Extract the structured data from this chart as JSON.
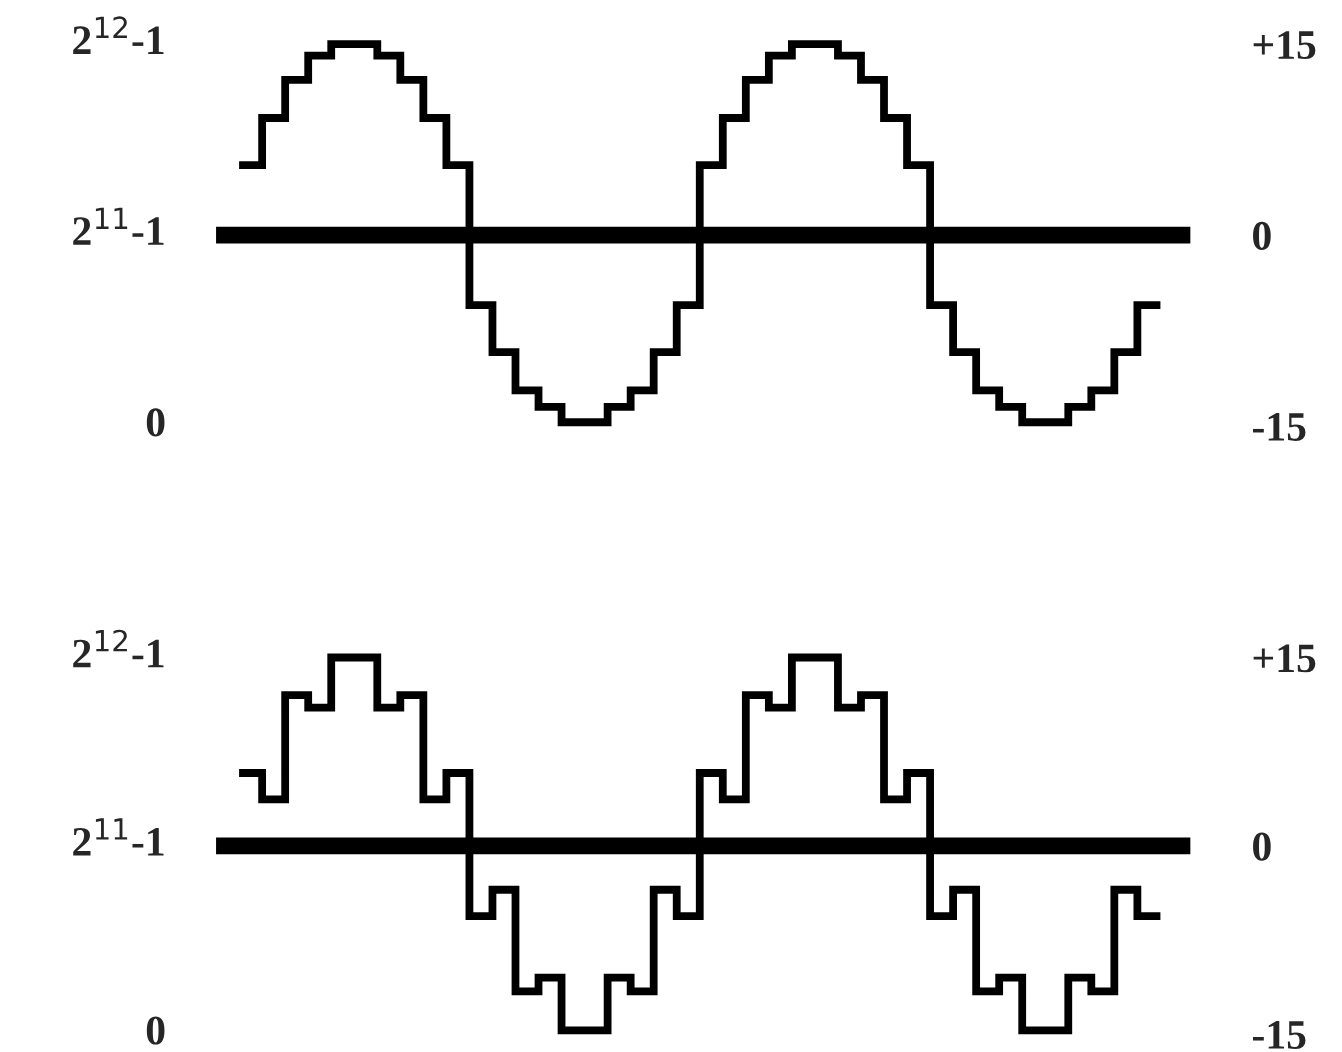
{
  "chart_data": [
    {
      "type": "step",
      "categories": [
        null,
        null,
        null,
        null,
        null,
        null,
        null,
        null,
        null,
        null,
        null,
        null,
        null,
        null,
        null,
        null,
        null,
        null,
        null,
        null,
        null,
        null,
        null,
        null,
        null,
        null,
        null,
        null,
        null,
        null,
        null,
        null,
        null,
        null,
        null,
        null,
        null,
        null,
        null,
        null
      ],
      "series": [
        {
          "color": "#000000",
          "values": [
            5.5,
            9.2,
            12.2,
            14.1,
            15,
            15,
            14.1,
            12.2,
            9.2,
            5.5,
            -5.5,
            -9.2,
            -12.2,
            -13.5,
            -14.7,
            -14.7,
            -13.5,
            -12.2,
            -9.2,
            -5.5,
            5.5,
            9.2,
            12.2,
            14.1,
            15,
            15,
            14.1,
            12.2,
            9.2,
            5.5,
            -5.5,
            -9.2,
            -12.2,
            -13.5,
            -14.7,
            -14.7,
            -13.5,
            -12.2,
            -9.2,
            -5.5
          ]
        }
      ],
      "ylim": [
        -15,
        15
      ],
      "yticks": [
        {
          "value": 15,
          "label": "+15"
        },
        0,
        -15
      ],
      "annotations": [
        "2$^{12}$-1",
        "2$^{11}$-1",
        "0"
      ],
      "ref_lines": [
        {
          "axis": "y",
          "value": 0,
          "color": "#000000"
        }
      ],
      "tick_labels": "y"
    },
    {
      "type": "step",
      "categories": [
        null,
        null,
        null,
        null,
        null,
        null,
        null,
        null,
        null,
        null,
        null,
        null,
        null,
        null,
        null,
        null,
        null,
        null,
        null,
        null,
        null,
        null,
        null,
        null,
        null,
        null,
        null,
        null,
        null,
        null,
        null,
        null,
        null,
        null,
        null,
        null,
        null,
        null,
        null,
        null
      ],
      "series": [
        {
          "color": "#000000",
          "values": [
            5.8,
            3.7,
            12,
            11,
            15,
            15,
            11,
            12,
            3.7,
            5.8,
            -5.6,
            -3.5,
            -11.6,
            -10.5,
            -14.7,
            -14.7,
            -10.5,
            -11.6,
            -3.5,
            -5.6,
            5.8,
            3.7,
            12,
            11,
            15,
            15,
            11,
            12,
            3.7,
            5.8,
            -5.6,
            -3.5,
            -11.6,
            -10.5,
            -14.7,
            -14.7,
            -10.5,
            -11.6,
            -3.5,
            -5.6
          ]
        }
      ],
      "ylim": [
        -15,
        15
      ],
      "yticks": [
        {
          "value": 15,
          "label": "+15"
        },
        0,
        -15
      ],
      "annotations": [
        "2$^{12}$-1",
        "2$^{11}$-1",
        "0"
      ],
      "ref_lines": [
        {
          "axis": "y",
          "value": 0,
          "color": "#000000"
        }
      ],
      "tick_labels": "y"
    }
  ]
}
